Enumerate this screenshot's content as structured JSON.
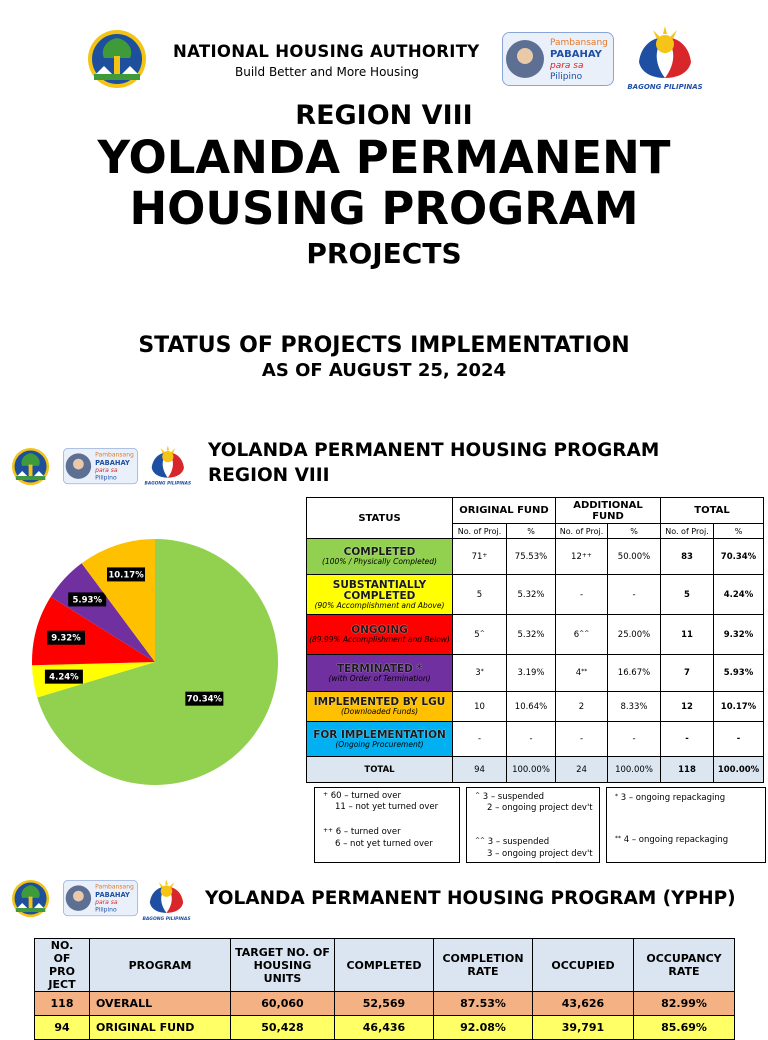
{
  "header": {
    "org_name": "NATIONAL HOUSING AUTHORITY",
    "org_tagline": "Build Better and More Housing",
    "logo_text": [
      "Pambansang",
      "PABAHAY",
      "para sa",
      "Pilipino"
    ],
    "seal_text": "BAGONG PILIPINAS"
  },
  "title": {
    "region": "REGION VIII",
    "line1": "YOLANDA PERMANENT",
    "line2": "HOUSING PROGRAM",
    "line3": "PROJECTS"
  },
  "status_heading": {
    "line1": "STATUS OF PROJECTS IMPLEMENTATION",
    "line2": "AS OF AUGUST 25, 2024"
  },
  "section1": {
    "title_line1": "YOLANDA PERMANENT HOUSING PROGRAM",
    "title_line2": "REGION VIII"
  },
  "chart_data": {
    "type": "pie",
    "values": [
      70.34,
      4.24,
      9.32,
      5.93,
      10.17
    ],
    "value_labels": [
      "70.34%",
      "4.24%",
      "9.32%",
      "5.93%",
      "10.17%"
    ],
    "colors": [
      "#92d050",
      "#ffff00",
      "#ff0000",
      "#7030a0",
      "#ffc000"
    ]
  },
  "status_table": {
    "headers": {
      "status": "STATUS",
      "groups": [
        "ORIGINAL FUND",
        "ADDITIONAL FUND",
        "TOTAL"
      ],
      "sub": [
        "No. of Proj.",
        "%",
        "No. of Proj.",
        "%",
        "No. of Proj.",
        "%"
      ]
    },
    "rows": [
      {
        "status": "COMPLETED",
        "note": "(100% / Physically Completed)",
        "color": "#92d050",
        "cells": [
          {
            "text": "71",
            "sup": "+"
          },
          "75.53%",
          {
            "text": "12",
            "sup": "++"
          },
          "50.00%",
          "83",
          "70.34%"
        ]
      },
      {
        "status": "SUBSTANTIALLY COMPLETED",
        "note": "(90% Accomplishment and Above)",
        "color": "#ffff00",
        "cells": [
          "5",
          "5.32%",
          "-",
          "-",
          "5",
          "4.24%"
        ]
      },
      {
        "status": "ONGOING",
        "note": "(89.99% Accomplishment and Below)",
        "color": "#ff0000",
        "cells": [
          {
            "text": "5",
            "sup": "^"
          },
          "5.32%",
          {
            "text": "6",
            "sup": "^^"
          },
          "25.00%",
          "11",
          "9.32%"
        ]
      },
      {
        "status": "TERMINATED *",
        "note": "(with Order of Termination)",
        "color": "#7030a0",
        "cells": [
          {
            "text": "3",
            "sup": "*"
          },
          "3.19%",
          {
            "text": "4",
            "sup": "**"
          },
          "16.67%",
          "7",
          "5.93%"
        ]
      },
      {
        "status": "IMPLEMENTED BY LGU",
        "note": "(Downloaded Funds)",
        "color": "#ffc000",
        "cells": [
          "10",
          "10.64%",
          "2",
          "8.33%",
          "12",
          "10.17%"
        ]
      },
      {
        "status": "FOR IMPLEMENTATION",
        "note": "(Ongoing Procurement)",
        "color": "#00b0f0",
        "cells": [
          "-",
          "-",
          "-",
          "-",
          "-",
          "-"
        ]
      }
    ],
    "total": {
      "label": "TOTAL",
      "cells": [
        "94",
        "100.00%",
        "24",
        "100.00%",
        "118",
        "100.00%"
      ]
    }
  },
  "footnotes": [
    [
      {
        "mark": "+",
        "text": "60 – turned over"
      },
      {
        "text": "11 – not yet turned over"
      },
      {
        "mark": "++",
        "text": "6 – turned over"
      },
      {
        "text": "6 – not yet turned over"
      }
    ],
    [
      {
        "mark": "^",
        "text": "3 – suspended"
      },
      {
        "text": "2 – ongoing project dev't"
      },
      {
        "mark": "^^",
        "text": "3 – suspended"
      },
      {
        "text": "3 – ongoing project dev't"
      }
    ],
    [
      {
        "mark": "*",
        "text": "3 – ongoing repackaging"
      },
      {
        "mark": "**",
        "text": "4 – ongoing repackaging"
      }
    ]
  ],
  "section2": {
    "title": "YOLANDA PERMANENT HOUSING PROGRAM (YPHP)"
  },
  "yphp_table": {
    "headers": [
      "NO. OF PRO JECT",
      "PROGRAM",
      "TARGET NO. OF HOUSING UNITS",
      "COMPLETED",
      "COMPLETION RATE",
      "OCCUPIED",
      "OCCUPANCY RATE"
    ],
    "rows": [
      {
        "color": "#f4b183",
        "cells": [
          "118",
          "OVERALL",
          "60,060",
          "52,569",
          "87.53%",
          "43,626",
          "82.99%"
        ]
      },
      {
        "color": "#ffff66",
        "cells": [
          "94",
          "ORIGINAL FUND",
          "50,428",
          "46,436",
          "92.08%",
          "39,791",
          "85.69%"
        ]
      }
    ]
  }
}
